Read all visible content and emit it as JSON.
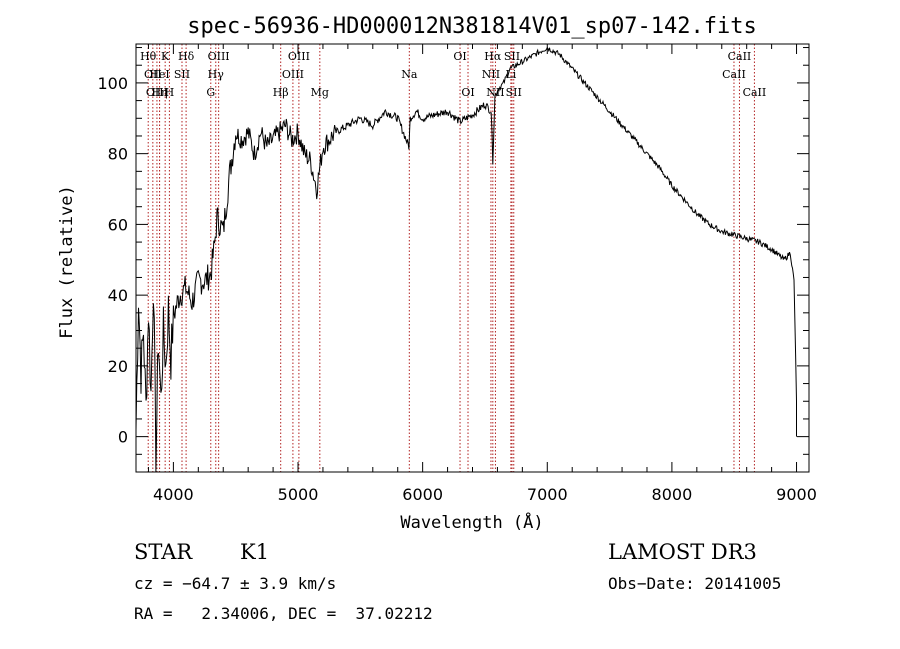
{
  "chart_data": {
    "type": "line",
    "title": "spec-56936-HD000012N381814V01_sp07-142.fits",
    "xlabel": "Wavelength (Å)",
    "ylabel": "Flux (relative)",
    "xlim": [
      3700,
      9100
    ],
    "ylim": [
      -10,
      111
    ],
    "xticks": [
      4000,
      5000,
      6000,
      7000,
      8000,
      9000
    ],
    "yticks": [
      0,
      20,
      40,
      60,
      80,
      100
    ],
    "series": [
      {
        "x": [
          3700,
          3720,
          3740,
          3760,
          3780,
          3800,
          3820,
          3840,
          3860,
          3880,
          3900,
          3920,
          3940,
          3960,
          3980,
          4000,
          4050,
          4100,
          4150,
          4200,
          4250,
          4300,
          4330,
          4350,
          4400,
          4450,
          4500,
          4550,
          4600,
          4650,
          4700,
          4750,
          4800,
          4850,
          4900,
          4950,
          5000,
          5050,
          5100,
          5150,
          5200,
          5250,
          5300,
          5400,
          5500,
          5600,
          5700,
          5800,
          5890,
          5900,
          5950,
          6000,
          6100,
          6200,
          6300,
          6400,
          6500,
          6550,
          6563,
          6580,
          6600,
          6650,
          6700,
          6800,
          6900,
          7000,
          7100,
          7200,
          7300,
          7400,
          7500,
          7600,
          7700,
          7800,
          7900,
          8000,
          8100,
          8200,
          8300,
          8400,
          8500,
          8600,
          8700,
          8800,
          8900,
          8950,
          8980,
          9000
        ],
        "y": [
          2,
          40,
          18,
          30,
          8,
          36,
          12,
          44,
          -6,
          28,
          10,
          30,
          20,
          36,
          22,
          34,
          40,
          42,
          38,
          44,
          44,
          46,
          54,
          62,
          58,
          74,
          86,
          84,
          86,
          80,
          86,
          82,
          84,
          86,
          88,
          84,
          86,
          80,
          78,
          70,
          82,
          84,
          86,
          88,
          90,
          88,
          92,
          90,
          82,
          90,
          92,
          90,
          91,
          92,
          89,
          91,
          94,
          92,
          78,
          96,
          98,
          100,
          104,
          106,
          108,
          110,
          108,
          104,
          100,
          96,
          92,
          88,
          84,
          80,
          76,
          71,
          67,
          63,
          60,
          58,
          57,
          56,
          55,
          53,
          50,
          52,
          44,
          10
        ]
      }
    ],
    "line_markers": [
      {
        "wl": 3798,
        "label": "Hθ",
        "row": 0
      },
      {
        "wl": 3835,
        "label": "OII",
        "row": 1
      },
      {
        "wl": 3868,
        "label": "OIII",
        "row": 2
      },
      {
        "wl": 3889,
        "label": "Hη",
        "row": 2
      },
      {
        "wl": 3934,
        "label": "K",
        "row": 0
      },
      {
        "wl": 3889,
        "label": "HeI",
        "row": 1
      },
      {
        "wl": 3968,
        "label": "H",
        "row": 2
      },
      {
        "wl": 4069,
        "label": "SII",
        "row": 1
      },
      {
        "wl": 4102,
        "label": "Hδ",
        "row": 0
      },
      {
        "wl": 4300,
        "label": "G",
        "row": 2
      },
      {
        "wl": 4340,
        "label": "Hγ",
        "row": 1
      },
      {
        "wl": 4363,
        "label": "OIII",
        "row": 0
      },
      {
        "wl": 4861,
        "label": "Hβ",
        "row": 2
      },
      {
        "wl": 4959,
        "label": "OIII",
        "row": 1
      },
      {
        "wl": 5007,
        "label": "OIII",
        "row": 0
      },
      {
        "wl": 5175,
        "label": "Mg",
        "row": 2
      },
      {
        "wl": 5893,
        "label": "Na",
        "row": 1
      },
      {
        "wl": 6300,
        "label": "OI",
        "row": 0
      },
      {
        "wl": 6364,
        "label": "OI",
        "row": 2
      },
      {
        "wl": 6548,
        "label": "NII",
        "row": 1
      },
      {
        "wl": 6563,
        "label": "Hα",
        "row": 0
      },
      {
        "wl": 6584,
        "label": "NII",
        "row": 2
      },
      {
        "wl": 6717,
        "label": "SII",
        "row": 0
      },
      {
        "wl": 6731,
        "label": "SII",
        "row": 2
      },
      {
        "wl": 6708,
        "label": "Li",
        "row": 1
      },
      {
        "wl": 8498,
        "label": "CaII",
        "row": 1
      },
      {
        "wl": 8542,
        "label": "CaII",
        "row": 0
      },
      {
        "wl": 8662,
        "label": "CaII",
        "row": 2
      }
    ],
    "marker_color": "#b22222",
    "grid": false,
    "legend": "none"
  },
  "info": {
    "object_class": "STAR",
    "subclass": "K1",
    "survey": "LAMOST DR3",
    "cz": "cz = −64.7 ± 3.9 km/s",
    "obs_date": "Obs−Date: 20141005",
    "coords": "RA =   2.34006, DEC =  37.02212"
  }
}
